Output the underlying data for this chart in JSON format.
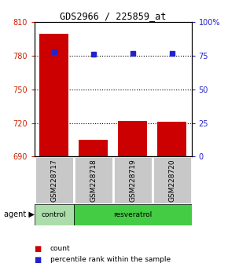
{
  "title": "GDS2966 / 225859_at",
  "samples": [
    "GSM228717",
    "GSM228718",
    "GSM228719",
    "GSM228720"
  ],
  "counts": [
    800,
    705,
    722,
    721
  ],
  "percentiles": [
    78,
    76,
    77,
    77
  ],
  "ylim_left": [
    690,
    810
  ],
  "ylim_right": [
    0,
    100
  ],
  "yticks_left": [
    690,
    720,
    750,
    780,
    810
  ],
  "yticks_right": [
    0,
    25,
    50,
    75,
    100
  ],
  "bar_color": "#cc0000",
  "dot_color": "#2222cc",
  "bar_width": 0.75,
  "background_color": "#ffffff",
  "plot_bg_color": "#ffffff",
  "gray_section_color": "#c8c8c8",
  "green_control_color": "#aaddaa",
  "green_resveratrol_color": "#44cc44",
  "grid_color": "#000000",
  "left_tick_color": "#cc2200",
  "right_tick_color": "#2222cc"
}
